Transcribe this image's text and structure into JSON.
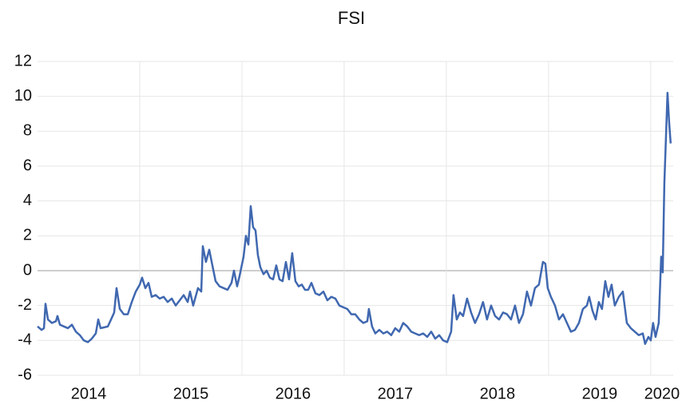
{
  "chart_data": {
    "type": "line",
    "title": "FSI",
    "xlim": [
      2014,
      2020.22
    ],
    "xticks": [
      {
        "value": 2014,
        "label": "2014"
      },
      {
        "value": 2015,
        "label": "2015"
      },
      {
        "value": 2016,
        "label": "2016"
      },
      {
        "value": 2017,
        "label": "2017"
      },
      {
        "value": 2018,
        "label": "2018"
      },
      {
        "value": 2019,
        "label": "2019"
      },
      {
        "value": 2020,
        "label": "2020"
      }
    ],
    "ylim": [
      -6,
      12
    ],
    "yticks": [
      -6,
      -4,
      -2,
      0,
      2,
      4,
      6,
      8,
      10,
      12
    ],
    "grid": true,
    "x": [
      2014.0,
      2014.039,
      2014.063,
      2014.078,
      2014.102,
      2014.141,
      2014.18,
      2014.195,
      2014.219,
      2014.297,
      2014.336,
      2014.375,
      2014.414,
      2014.453,
      2014.492,
      2014.531,
      2014.57,
      2014.594,
      2014.617,
      2014.688,
      2014.727,
      2014.75,
      2014.773,
      2014.805,
      2014.844,
      2014.883,
      2014.922,
      2014.961,
      2015.0,
      2015.023,
      2015.055,
      2015.086,
      2015.117,
      2015.156,
      2015.195,
      2015.234,
      2015.273,
      2015.313,
      2015.352,
      2015.391,
      2015.43,
      2015.469,
      2015.492,
      2015.523,
      2015.57,
      2015.602,
      2015.617,
      2015.648,
      2015.68,
      2015.711,
      2015.742,
      2015.781,
      2015.82,
      2015.859,
      2015.898,
      2015.922,
      2015.953,
      2015.977,
      2016.016,
      2016.039,
      2016.063,
      2016.086,
      2016.109,
      2016.133,
      2016.156,
      2016.18,
      2016.211,
      2016.242,
      2016.273,
      2016.305,
      2016.336,
      2016.367,
      2016.398,
      2016.43,
      2016.461,
      2016.492,
      2016.523,
      2016.555,
      2016.586,
      2016.617,
      2016.648,
      2016.68,
      2016.719,
      2016.758,
      2016.797,
      2016.836,
      2016.875,
      2016.914,
      2016.953,
      2016.992,
      2017.031,
      2017.07,
      2017.109,
      2017.148,
      2017.188,
      2017.227,
      2017.242,
      2017.273,
      2017.305,
      2017.344,
      2017.383,
      2017.422,
      2017.461,
      2017.5,
      2017.539,
      2017.578,
      2017.617,
      2017.656,
      2017.695,
      2017.734,
      2017.773,
      2017.813,
      2017.852,
      2017.891,
      2017.93,
      2017.969,
      2018.008,
      2018.047,
      2018.07,
      2018.102,
      2018.133,
      2018.164,
      2018.203,
      2018.242,
      2018.281,
      2018.32,
      2018.359,
      2018.398,
      2018.438,
      2018.477,
      2018.516,
      2018.555,
      2018.594,
      2018.633,
      2018.672,
      2018.711,
      2018.75,
      2018.789,
      2018.828,
      2018.867,
      2018.906,
      2018.945,
      2018.969,
      2018.992,
      2019.023,
      2019.063,
      2019.102,
      2019.141,
      2019.18,
      2019.219,
      2019.258,
      2019.297,
      2019.336,
      2019.375,
      2019.398,
      2019.43,
      2019.461,
      2019.492,
      2019.523,
      2019.555,
      2019.586,
      2019.617,
      2019.648,
      2019.688,
      2019.727,
      2019.766,
      2019.805,
      2019.844,
      2019.883,
      2019.922,
      2019.945,
      2019.977,
      2020.0,
      2020.023,
      2020.047,
      2020.078,
      2020.102,
      2020.117,
      2020.133,
      2020.148,
      2020.164,
      2020.18,
      2020.195
    ],
    "series": [
      {
        "name": "FSI",
        "color": "#4068b0",
        "values": [
          -3.2,
          -3.4,
          -3.3,
          -1.9,
          -2.8,
          -3.0,
          -2.9,
          -2.6,
          -3.1,
          -3.3,
          -3.1,
          -3.5,
          -3.7,
          -4.0,
          -4.1,
          -3.9,
          -3.6,
          -2.8,
          -3.3,
          -3.2,
          -2.7,
          -2.4,
          -1.0,
          -2.2,
          -2.5,
          -2.5,
          -1.8,
          -1.2,
          -0.8,
          -0.4,
          -1.0,
          -0.7,
          -1.5,
          -1.4,
          -1.6,
          -1.5,
          -1.8,
          -1.6,
          -2.0,
          -1.7,
          -1.4,
          -1.8,
          -1.2,
          -2.0,
          -1.0,
          -1.2,
          1.4,
          0.5,
          1.2,
          0.3,
          -0.6,
          -0.9,
          -1.0,
          -1.1,
          -0.7,
          0.0,
          -0.9,
          -0.3,
          0.8,
          2.0,
          1.5,
          3.7,
          2.5,
          2.3,
          0.9,
          0.2,
          -0.2,
          0.0,
          -0.4,
          -0.5,
          0.3,
          -0.5,
          -0.6,
          0.5,
          -0.5,
          1.0,
          -0.6,
          -0.9,
          -0.8,
          -1.1,
          -1.1,
          -0.7,
          -1.3,
          -1.4,
          -1.2,
          -1.7,
          -1.5,
          -1.6,
          -2.0,
          -2.1,
          -2.2,
          -2.5,
          -2.5,
          -2.8,
          -3.0,
          -2.9,
          -2.2,
          -3.2,
          -3.6,
          -3.4,
          -3.6,
          -3.5,
          -3.7,
          -3.3,
          -3.5,
          -3.0,
          -3.2,
          -3.5,
          -3.6,
          -3.7,
          -3.6,
          -3.8,
          -3.5,
          -3.9,
          -3.7,
          -4.0,
          -4.1,
          -3.5,
          -1.4,
          -2.8,
          -2.4,
          -2.6,
          -1.6,
          -2.4,
          -3.0,
          -2.5,
          -1.8,
          -2.8,
          -2.0,
          -2.6,
          -2.8,
          -2.4,
          -2.5,
          -2.8,
          -2.0,
          -3.0,
          -2.5,
          -1.2,
          -2.0,
          -1.0,
          -0.8,
          0.5,
          0.4,
          -1.0,
          -1.5,
          -2.0,
          -2.8,
          -2.5,
          -3.0,
          -3.5,
          -3.4,
          -3.0,
          -2.2,
          -2.0,
          -1.5,
          -2.3,
          -2.8,
          -1.8,
          -2.2,
          -0.6,
          -1.5,
          -0.8,
          -2.0,
          -1.5,
          -1.2,
          -3.0,
          -3.3,
          -3.5,
          -3.7,
          -3.6,
          -4.2,
          -3.8,
          -4.0,
          -3.0,
          -3.8,
          -3.0,
          0.8,
          -0.1,
          5.0,
          7.5,
          10.2,
          8.5,
          7.3
        ]
      }
    ]
  }
}
